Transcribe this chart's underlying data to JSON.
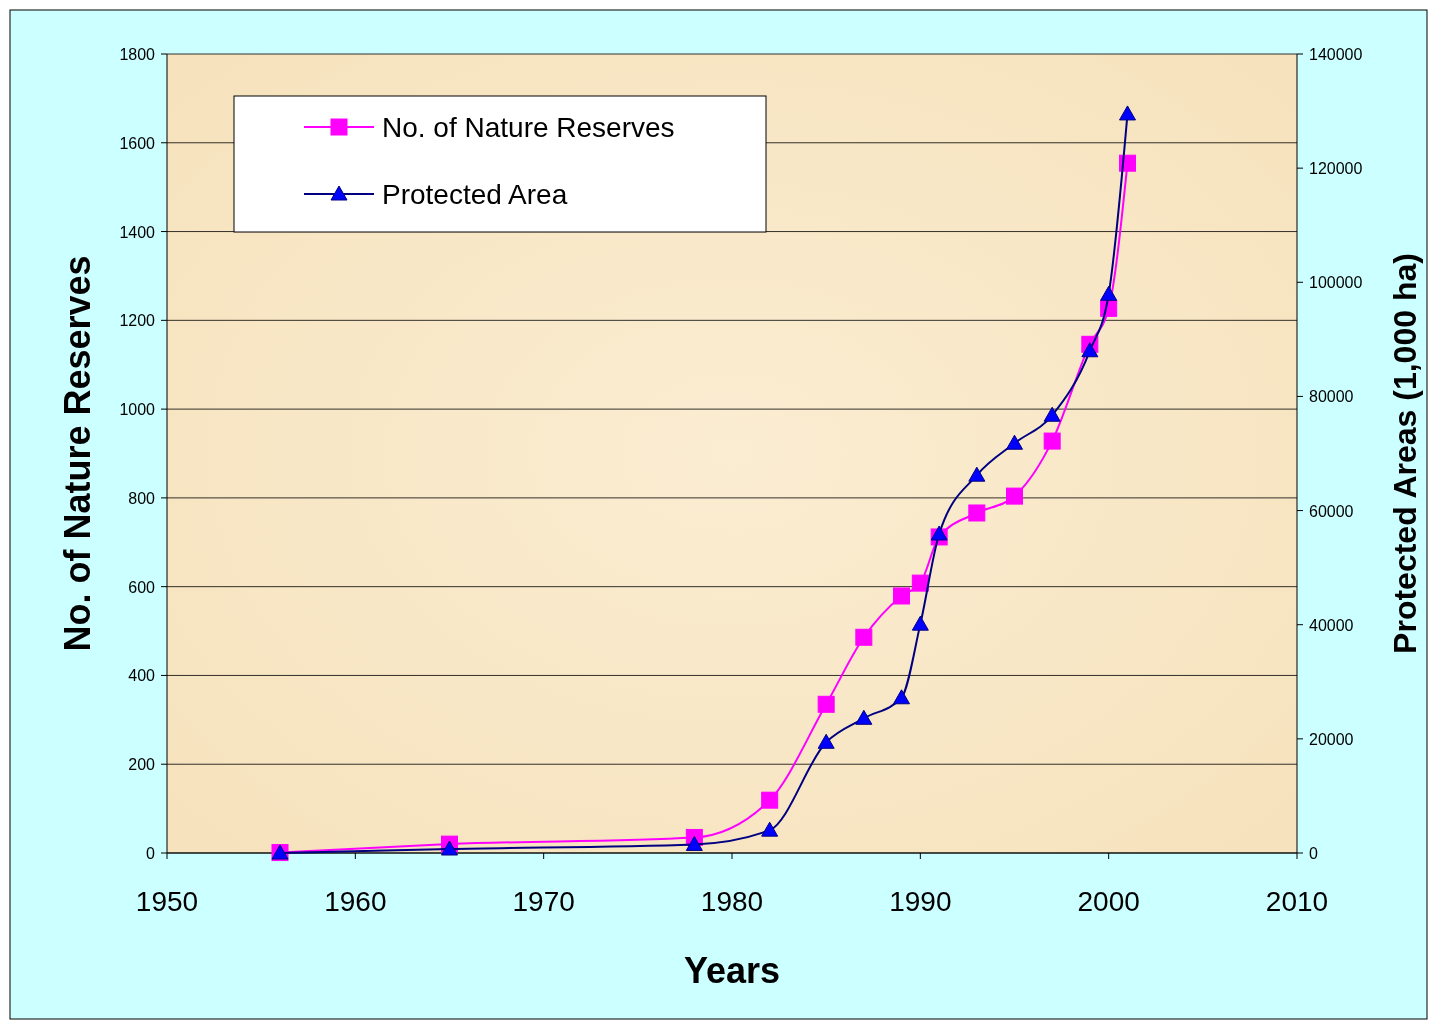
{
  "chart_data": {
    "type": "line",
    "xlabel": "Years",
    "ylabel": "No. of Nature Reserves",
    "y2label": "Protected Areas (1,000 ha)",
    "xlim": [
      1950,
      2010
    ],
    "xticks": [
      1950,
      1960,
      1970,
      1980,
      1990,
      2000,
      2010
    ],
    "ylim": [
      0,
      1800
    ],
    "yticks": [
      0,
      200,
      400,
      600,
      800,
      1000,
      1200,
      1400,
      1600,
      1800
    ],
    "y2lim": [
      0,
      140000
    ],
    "y2ticks": [
      0,
      20000,
      40000,
      60000,
      80000,
      100000,
      120000,
      140000
    ],
    "grid": "y",
    "legend": "top left",
    "series": [
      {
        "name": "No. of Nature Reserves",
        "color": "#ff00ff",
        "marker": "square",
        "x": [
          1956,
          1965,
          1978,
          1982,
          1985,
          1987,
          1989,
          1990,
          1991,
          1993,
          1995,
          1997,
          1999,
          2000,
          2001
        ],
        "values": [
          1,
          20,
          35,
          119,
          335,
          486,
          579,
          608,
          712,
          766,
          804,
          928,
          1146,
          1227,
          1554
        ]
      },
      {
        "name": "Protected Area",
        "color": "#000080",
        "marker": "triangle",
        "axis": "y2",
        "x": [
          1956,
          1965,
          1978,
          1982,
          1985,
          1987,
          1989,
          1990,
          1991,
          1993,
          1995,
          1997,
          1999,
          2000,
          2001
        ],
        "values": [
          0,
          700,
          1500,
          4000,
          19400,
          23600,
          27200,
          40100,
          55900,
          66200,
          71800,
          76700,
          88000,
          97900,
          129500
        ]
      }
    ]
  }
}
